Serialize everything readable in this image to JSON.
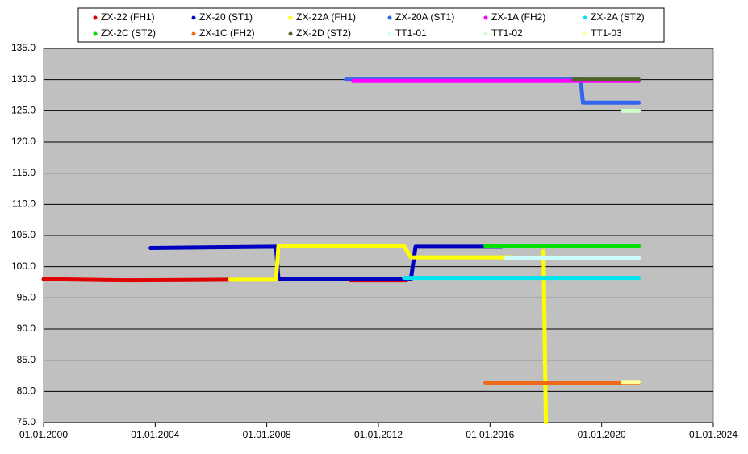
{
  "chart_data": {
    "type": "line",
    "xlim": [
      "2000-01-01",
      "2024-01-01"
    ],
    "xticks": [
      {
        "value": "2000-01-01",
        "label": "01.01.2000"
      },
      {
        "value": "2004-01-01",
        "label": "01.01.2004"
      },
      {
        "value": "2008-01-01",
        "label": "01.01.2008"
      },
      {
        "value": "2012-01-01",
        "label": "01.01.2012"
      },
      {
        "value": "2016-01-01",
        "label": "01.01.2016"
      },
      {
        "value": "2020-01-01",
        "label": "01.01.2020"
      },
      {
        "value": "2024-01-01",
        "label": "01.01.2024"
      }
    ],
    "ylim": [
      75,
      135
    ],
    "yticks": [
      {
        "value": 75,
        "label": "75.0"
      },
      {
        "value": 80,
        "label": "80.0"
      },
      {
        "value": 85,
        "label": "85.0"
      },
      {
        "value": 90,
        "label": "90.0"
      },
      {
        "value": 95,
        "label": "95.0"
      },
      {
        "value": 100,
        "label": "100.0"
      },
      {
        "value": 105,
        "label": "105.0"
      },
      {
        "value": 110,
        "label": "110.0"
      },
      {
        "value": 115,
        "label": "115.0"
      },
      {
        "value": 120,
        "label": "120.0"
      },
      {
        "value": 125,
        "label": "125.0"
      },
      {
        "value": 130,
        "label": "130.0"
      },
      {
        "value": 135,
        "label": "135.0"
      }
    ],
    "grid": true,
    "series": [
      {
        "name": "ZX-22 (FH1)",
        "color": "#e00000",
        "x": [
          "2000-01-01",
          "2003-01-01",
          "2006-09-01",
          null,
          "2011-01-01",
          "2013-01-01"
        ],
        "values": [
          98.0,
          97.8,
          97.9,
          null,
          97.8,
          97.8
        ]
      },
      {
        "name": "ZX-20 (ST1)",
        "color": "#0000c0",
        "x": [
          "2003-11-01",
          "2008-05-01",
          "2008-06-01",
          "2013-03-01",
          "2013-05-01",
          "2016-06-01"
        ],
        "values": [
          103.0,
          103.2,
          98.0,
          98.0,
          103.2,
          103.2
        ]
      },
      {
        "name": "ZX-22A (FH1)",
        "color": "#ffff00",
        "x": [
          "2006-09-01",
          "2008-05-01",
          "2008-06-01",
          "2012-12-01",
          "2013-03-01",
          "2016-11-01",
          null,
          "2017-12-01",
          "2018-01-01"
        ],
        "values": [
          97.9,
          97.9,
          103.3,
          103.3,
          101.5,
          101.5,
          null,
          102.5,
          75.0
        ]
      },
      {
        "name": "ZX-20A (ST1)",
        "color": "#3366ee",
        "x": [
          "2010-11-01",
          "2019-04-01",
          "2019-05-01",
          "2021-05-01"
        ],
        "values": [
          130.0,
          130.0,
          126.3,
          126.3
        ]
      },
      {
        "name": "ZX-1A (FH2)",
        "color": "#ff00ff",
        "x": [
          "2011-02-01",
          "2021-05-01"
        ],
        "values": [
          129.8,
          129.8
        ]
      },
      {
        "name": "ZX-2A (ST2)",
        "color": "#00e5f0",
        "x": [
          "2012-12-01",
          "2021-05-01"
        ],
        "values": [
          98.2,
          98.2
        ]
      },
      {
        "name": "ZX-2C (ST2)",
        "color": "#00e000",
        "x": [
          "2015-11-01",
          "2021-05-01"
        ],
        "values": [
          103.3,
          103.3
        ]
      },
      {
        "name": "ZX-1C (FH2)",
        "color": "#ee6a1a",
        "x": [
          "2015-11-01",
          "2021-05-01"
        ],
        "values": [
          81.4,
          81.4
        ]
      },
      {
        "name": "ZX-2D (ST2)",
        "color": "#4f6228",
        "x": [
          "2019-01-01",
          "2021-05-01"
        ],
        "values": [
          130.0,
          130.0
        ]
      },
      {
        "name": "TT1-01",
        "color": "#ccffff",
        "x": [
          "2016-08-01",
          "2021-05-01"
        ],
        "values": [
          101.4,
          101.4
        ]
      },
      {
        "name": "TT1-02",
        "color": "#ccffcc",
        "x": [
          "2020-10-01",
          "2021-05-01"
        ],
        "values": [
          125.0,
          125.0
        ]
      },
      {
        "name": "TT1-03",
        "color": "#ffff99",
        "x": [
          "2020-10-01",
          "2021-05-01"
        ],
        "values": [
          81.5,
          81.5
        ]
      }
    ]
  }
}
